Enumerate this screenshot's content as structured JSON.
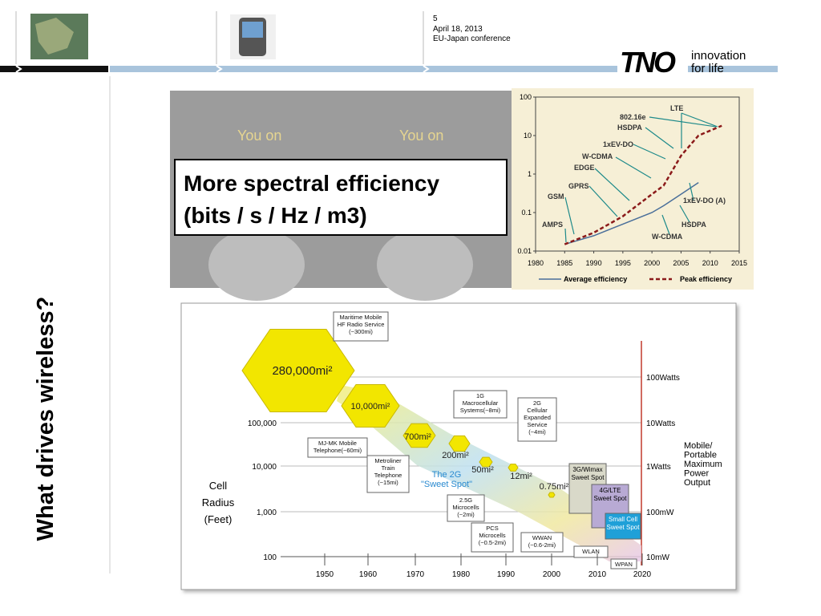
{
  "header": {
    "slide_number": "5",
    "date": "April 18, 2013",
    "event": "EU-Japan conference"
  },
  "logo": {
    "brand": "TNO",
    "tagline_1": "innovation",
    "tagline_2": "for life"
  },
  "title": "What drives wireless?",
  "photo": {
    "caption_left": "You on",
    "caption_right": "You on"
  },
  "callout": {
    "line_1": "More spectral efficiency",
    "line_2": "(bits / s / Hz / m3)"
  },
  "chart_data": {
    "type": "line",
    "log_y": true,
    "x": [
      1985,
      1990,
      1995,
      2000,
      2002,
      2005,
      2008,
      2012
    ],
    "xlim": [
      1980,
      2015
    ],
    "xticks": [
      1980,
      1985,
      1990,
      1995,
      2000,
      2005,
      2010,
      2015
    ],
    "ylim": [
      0.01,
      100
    ],
    "yticks": [
      0.01,
      0.1,
      1,
      10,
      100
    ],
    "series": [
      {
        "name": "Average efficiency",
        "color": "#4a6f9a",
        "dash": false,
        "values": [
          0.015,
          0.025,
          0.05,
          0.1,
          0.15,
          0.3,
          0.6,
          null
        ]
      },
      {
        "name": "Peak efficiency",
        "color": "#8b1a1a",
        "dash": true,
        "values": [
          0.015,
          0.03,
          0.08,
          0.3,
          0.5,
          3,
          10,
          18
        ]
      }
    ],
    "annotations": [
      "LTE",
      "802.16e",
      "HSDPA",
      "1xEV-DO",
      "W-CDMA",
      "EDGE",
      "GPRS",
      "GSM",
      "AMPS",
      "1xEV-DO (A)",
      "HSDPA",
      "W-CDMA"
    ]
  },
  "diagram": {
    "callouts": [
      {
        "lines": [
          "Maritime Mobile",
          "HF Radio Service",
          "(~300mi)"
        ]
      },
      {
        "lines": [
          "MJ-MK Mobile",
          "Telephone(~60mi)"
        ]
      },
      {
        "lines": [
          "Metroliner",
          "Train",
          "Telephone",
          "(~15mi)"
        ]
      },
      {
        "lines": [
          "1G",
          "Macrocellular",
          "Systems(~8mi)"
        ]
      },
      {
        "lines": [
          "2G",
          "Cellular",
          "Expanded",
          "Service",
          "(~4mi)"
        ]
      },
      {
        "lines": [
          "2.5G",
          "Microcells",
          "(~2mi)"
        ]
      },
      {
        "lines": [
          "PCS",
          "Microcells",
          "(~0.5-2mi)"
        ]
      },
      {
        "lines": [
          "WWAN",
          "(~0.6-2mi)"
        ]
      },
      {
        "lines": [
          "WLAN"
        ]
      },
      {
        "lines": [
          "WPAN"
        ]
      }
    ],
    "areas": [
      "280,000mi²",
      "10,000mi²",
      "700mi²",
      "200mi²",
      "50mi²",
      "12mi²",
      "0.75mi²"
    ],
    "sweet_spot": [
      "The 2G",
      "\"Sweet Spot\""
    ],
    "boxes": [
      {
        "lines": [
          "3G/Wimax",
          "Sweet Spot"
        ]
      },
      {
        "lines": [
          "4G/LTE",
          "Sweet Spot"
        ]
      },
      {
        "lines": [
          "Small Cell",
          "Sweet Spot"
        ]
      }
    ],
    "left_axis": {
      "title": [
        "Cell",
        "Radius",
        "(Feet)"
      ],
      "ticks": [
        "100,000",
        "10,000",
        "1,000",
        "100"
      ]
    },
    "right_axis": {
      "title": [
        "Mobile/",
        "Portable",
        "Maximum",
        "Power",
        "Output"
      ],
      "ticks": [
        "100Watts",
        "10Watts",
        "1Watts",
        "100mW",
        "10mW"
      ]
    },
    "x_ticks": [
      "1950",
      "1960",
      "1970",
      "1980",
      "1990",
      "2000",
      "2010",
      "2020"
    ]
  }
}
